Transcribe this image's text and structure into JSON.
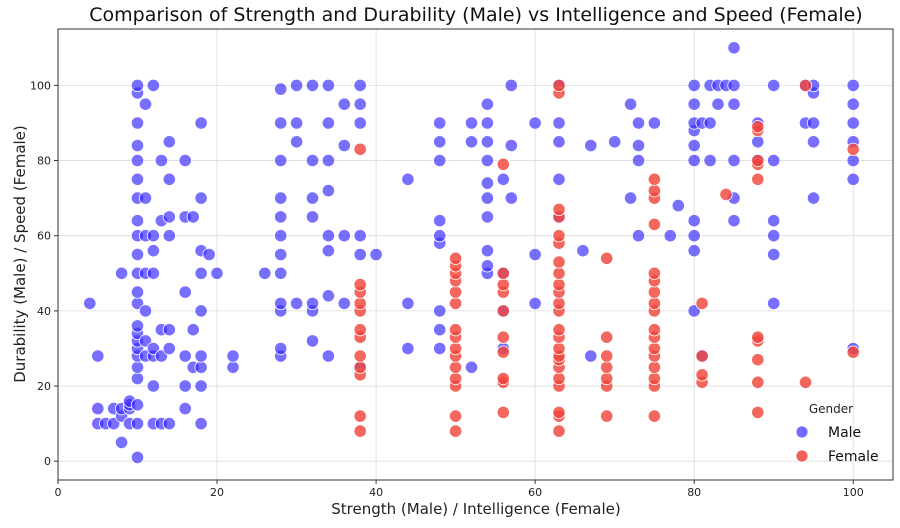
{
  "chart_data": {
    "type": "scatter",
    "title": "Comparison of Strength and Durability (Male) vs Intelligence and Speed (Female)",
    "xlabel": "Strength (Male) / Intelligence (Female)",
    "ylabel": "Durability (Male) / Speed (Female)",
    "xlim": [
      0,
      105
    ],
    "ylim": [
      -5,
      115
    ],
    "xticks": [
      0,
      20,
      40,
      60,
      80,
      100
    ],
    "yticks": [
      0,
      20,
      40,
      60,
      80,
      100
    ],
    "grid": true,
    "legend": {
      "title": "Gender",
      "position": "bottom-right"
    },
    "series": [
      {
        "name": "Male",
        "color": "#3a2bff",
        "points": [
          [
            4,
            42
          ],
          [
            5,
            28
          ],
          [
            5,
            10
          ],
          [
            5,
            14
          ],
          [
            6,
            10
          ],
          [
            7,
            10
          ],
          [
            7,
            14
          ],
          [
            8,
            5
          ],
          [
            8,
            12
          ],
          [
            8,
            14
          ],
          [
            8,
            50
          ],
          [
            9,
            10
          ],
          [
            9,
            14
          ],
          [
            9,
            15
          ],
          [
            9,
            16
          ],
          [
            10,
            1
          ],
          [
            10,
            10
          ],
          [
            10,
            15
          ],
          [
            10,
            22
          ],
          [
            10,
            25
          ],
          [
            10,
            28
          ],
          [
            10,
            30
          ],
          [
            10,
            32
          ],
          [
            10,
            34
          ],
          [
            10,
            36
          ],
          [
            10,
            42
          ],
          [
            10,
            45
          ],
          [
            10,
            50
          ],
          [
            10,
            55
          ],
          [
            10,
            60
          ],
          [
            10,
            64
          ],
          [
            10,
            70
          ],
          [
            10,
            75
          ],
          [
            10,
            80
          ],
          [
            10,
            84
          ],
          [
            10,
            90
          ],
          [
            10,
            98
          ],
          [
            10,
            100
          ],
          [
            11,
            28
          ],
          [
            11,
            32
          ],
          [
            11,
            40
          ],
          [
            11,
            50
          ],
          [
            11,
            60
          ],
          [
            11,
            70
          ],
          [
            11,
            95
          ],
          [
            12,
            10
          ],
          [
            12,
            20
          ],
          [
            12,
            28
          ],
          [
            12,
            30
          ],
          [
            12,
            50
          ],
          [
            12,
            56
          ],
          [
            12,
            60
          ],
          [
            12,
            100
          ],
          [
            13,
            10
          ],
          [
            13,
            28
          ],
          [
            13,
            35
          ],
          [
            13,
            64
          ],
          [
            13,
            80
          ],
          [
            14,
            10
          ],
          [
            14,
            30
          ],
          [
            14,
            35
          ],
          [
            14,
            60
          ],
          [
            14,
            65
          ],
          [
            14,
            75
          ],
          [
            14,
            85
          ],
          [
            16,
            14
          ],
          [
            16,
            20
          ],
          [
            16,
            28
          ],
          [
            16,
            45
          ],
          [
            16,
            65
          ],
          [
            16,
            80
          ],
          [
            17,
            25
          ],
          [
            17,
            35
          ],
          [
            17,
            65
          ],
          [
            18,
            10
          ],
          [
            18,
            20
          ],
          [
            18,
            25
          ],
          [
            18,
            28
          ],
          [
            18,
            40
          ],
          [
            18,
            50
          ],
          [
            18,
            56
          ],
          [
            18,
            70
          ],
          [
            18,
            90
          ],
          [
            19,
            55
          ],
          [
            20,
            50
          ],
          [
            22,
            25
          ],
          [
            22,
            28
          ],
          [
            26,
            50
          ],
          [
            28,
            28
          ],
          [
            28,
            30
          ],
          [
            28,
            40
          ],
          [
            28,
            42
          ],
          [
            28,
            50
          ],
          [
            28,
            55
          ],
          [
            28,
            60
          ],
          [
            28,
            65
          ],
          [
            28,
            70
          ],
          [
            28,
            80
          ],
          [
            28,
            90
          ],
          [
            28,
            99
          ],
          [
            30,
            42
          ],
          [
            30,
            85
          ],
          [
            30,
            90
          ],
          [
            30,
            100
          ],
          [
            32,
            32
          ],
          [
            32,
            40
          ],
          [
            32,
            42
          ],
          [
            32,
            65
          ],
          [
            32,
            70
          ],
          [
            32,
            80
          ],
          [
            32,
            100
          ],
          [
            34,
            28
          ],
          [
            34,
            44
          ],
          [
            34,
            56
          ],
          [
            34,
            60
          ],
          [
            34,
            72
          ],
          [
            34,
            80
          ],
          [
            34,
            90
          ],
          [
            34,
            100
          ],
          [
            36,
            42
          ],
          [
            36,
            60
          ],
          [
            36,
            84
          ],
          [
            36,
            95
          ],
          [
            38,
            25
          ],
          [
            38,
            55
          ],
          [
            38,
            60
          ],
          [
            38,
            90
          ],
          [
            38,
            95
          ],
          [
            38,
            100
          ],
          [
            40,
            55
          ],
          [
            44,
            30
          ],
          [
            44,
            42
          ],
          [
            44,
            75
          ],
          [
            48,
            30
          ],
          [
            48,
            35
          ],
          [
            48,
            40
          ],
          [
            48,
            58
          ],
          [
            48,
            60
          ],
          [
            48,
            64
          ],
          [
            48,
            80
          ],
          [
            48,
            85
          ],
          [
            48,
            90
          ],
          [
            52,
            25
          ],
          [
            52,
            85
          ],
          [
            52,
            90
          ],
          [
            54,
            50
          ],
          [
            54,
            52
          ],
          [
            54,
            56
          ],
          [
            54,
            65
          ],
          [
            54,
            70
          ],
          [
            54,
            74
          ],
          [
            54,
            80
          ],
          [
            54,
            85
          ],
          [
            54,
            90
          ],
          [
            54,
            95
          ],
          [
            56,
            30
          ],
          [
            56,
            40
          ],
          [
            56,
            50
          ],
          [
            56,
            75
          ],
          [
            57,
            70
          ],
          [
            57,
            84
          ],
          [
            57,
            100
          ],
          [
            60,
            42
          ],
          [
            60,
            55
          ],
          [
            60,
            90
          ],
          [
            63,
            65
          ],
          [
            63,
            75
          ],
          [
            63,
            85
          ],
          [
            63,
            90
          ],
          [
            63,
            100
          ],
          [
            66,
            56
          ],
          [
            67,
            28
          ],
          [
            67,
            84
          ],
          [
            70,
            85
          ],
          [
            72,
            70
          ],
          [
            72,
            95
          ],
          [
            73,
            60
          ],
          [
            73,
            84
          ],
          [
            73,
            80
          ],
          [
            73,
            90
          ],
          [
            75,
            90
          ],
          [
            77,
            60
          ],
          [
            78,
            68
          ],
          [
            80,
            40
          ],
          [
            80,
            56
          ],
          [
            80,
            60
          ],
          [
            80,
            64
          ],
          [
            80,
            80
          ],
          [
            80,
            84
          ],
          [
            80,
            88
          ],
          [
            80,
            90
          ],
          [
            80,
            95
          ],
          [
            80,
            100
          ],
          [
            81,
            28
          ],
          [
            81,
            90
          ],
          [
            82,
            80
          ],
          [
            82,
            90
          ],
          [
            82,
            100
          ],
          [
            83,
            95
          ],
          [
            83,
            100
          ],
          [
            84,
            100
          ],
          [
            85,
            64
          ],
          [
            85,
            70
          ],
          [
            85,
            80
          ],
          [
            85,
            95
          ],
          [
            85,
            100
          ],
          [
            85,
            110
          ],
          [
            88,
            80
          ],
          [
            88,
            85
          ],
          [
            88,
            90
          ],
          [
            90,
            42
          ],
          [
            90,
            55
          ],
          [
            90,
            60
          ],
          [
            90,
            64
          ],
          [
            90,
            80
          ],
          [
            90,
            100
          ],
          [
            94,
            90
          ],
          [
            94,
            100
          ],
          [
            95,
            70
          ],
          [
            95,
            85
          ],
          [
            95,
            90
          ],
          [
            95,
            98
          ],
          [
            95,
            100
          ],
          [
            100,
            30
          ],
          [
            100,
            75
          ],
          [
            100,
            80
          ],
          [
            100,
            85
          ],
          [
            100,
            90
          ],
          [
            100,
            95
          ],
          [
            100,
            100
          ]
        ]
      },
      {
        "name": "Female",
        "color": "#f0453a",
        "points": [
          [
            38,
            8
          ],
          [
            38,
            12
          ],
          [
            38,
            23
          ],
          [
            38,
            25
          ],
          [
            38,
            28
          ],
          [
            38,
            33
          ],
          [
            38,
            35
          ],
          [
            38,
            40
          ],
          [
            38,
            42
          ],
          [
            38,
            45
          ],
          [
            38,
            47
          ],
          [
            38,
            83
          ],
          [
            50,
            8
          ],
          [
            50,
            12
          ],
          [
            50,
            20
          ],
          [
            50,
            22
          ],
          [
            50,
            25
          ],
          [
            50,
            28
          ],
          [
            50,
            30
          ],
          [
            50,
            33
          ],
          [
            50,
            35
          ],
          [
            50,
            42
          ],
          [
            50,
            45
          ],
          [
            50,
            48
          ],
          [
            50,
            50
          ],
          [
            50,
            52
          ],
          [
            50,
            54
          ],
          [
            56,
            13
          ],
          [
            56,
            21
          ],
          [
            56,
            22
          ],
          [
            56,
            29
          ],
          [
            56,
            33
          ],
          [
            56,
            40
          ],
          [
            56,
            45
          ],
          [
            56,
            47
          ],
          [
            56,
            50
          ],
          [
            56,
            79
          ],
          [
            63,
            8
          ],
          [
            63,
            12
          ],
          [
            63,
            13
          ],
          [
            63,
            20
          ],
          [
            63,
            22
          ],
          [
            63,
            25
          ],
          [
            63,
            27
          ],
          [
            63,
            28
          ],
          [
            63,
            30
          ],
          [
            63,
            33
          ],
          [
            63,
            35
          ],
          [
            63,
            40
          ],
          [
            63,
            42
          ],
          [
            63,
            45
          ],
          [
            63,
            47
          ],
          [
            63,
            50
          ],
          [
            63,
            53
          ],
          [
            63,
            58
          ],
          [
            63,
            60
          ],
          [
            63,
            65
          ],
          [
            63,
            67
          ],
          [
            63,
            98
          ],
          [
            63,
            100
          ],
          [
            69,
            12
          ],
          [
            69,
            20
          ],
          [
            69,
            22
          ],
          [
            69,
            25
          ],
          [
            69,
            28
          ],
          [
            69,
            33
          ],
          [
            69,
            54
          ],
          [
            75,
            12
          ],
          [
            75,
            20
          ],
          [
            75,
            22
          ],
          [
            75,
            25
          ],
          [
            75,
            28
          ],
          [
            75,
            30
          ],
          [
            75,
            33
          ],
          [
            75,
            35
          ],
          [
            75,
            40
          ],
          [
            75,
            42
          ],
          [
            75,
            45
          ],
          [
            75,
            48
          ],
          [
            75,
            50
          ],
          [
            75,
            63
          ],
          [
            75,
            70
          ],
          [
            75,
            72
          ],
          [
            75,
            75
          ],
          [
            81,
            21
          ],
          [
            81,
            23
          ],
          [
            81,
            28
          ],
          [
            81,
            42
          ],
          [
            84,
            71
          ],
          [
            88,
            13
          ],
          [
            88,
            21
          ],
          [
            88,
            27
          ],
          [
            88,
            32
          ],
          [
            88,
            33
          ],
          [
            88,
            75
          ],
          [
            88,
            79
          ],
          [
            88,
            80
          ],
          [
            88,
            88
          ],
          [
            88,
            89
          ],
          [
            94,
            21
          ],
          [
            94,
            100
          ],
          [
            100,
            29
          ],
          [
            100,
            83
          ]
        ]
      }
    ]
  }
}
